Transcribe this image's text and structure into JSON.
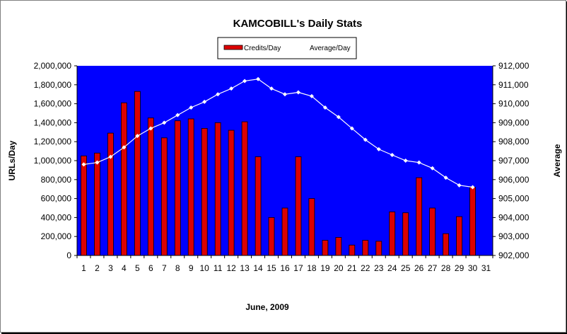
{
  "chart_data": {
    "type": "bar",
    "title": "KAMCOBILL's Daily Stats",
    "xlabel": "June, 2009",
    "ylabel": "URLs/Day",
    "y2label": "Average",
    "categories": [
      "1",
      "2",
      "3",
      "4",
      "5",
      "6",
      "7",
      "8",
      "9",
      "10",
      "11",
      "12",
      "13",
      "14",
      "15",
      "16",
      "17",
      "18",
      "19",
      "20",
      "21",
      "22",
      "23",
      "24",
      "25",
      "26",
      "27",
      "28",
      "29",
      "30",
      "31"
    ],
    "ylim": [
      0,
      2000000
    ],
    "y2lim": [
      902000,
      912000
    ],
    "yticks": [
      "0",
      "200,000",
      "400,000",
      "600,000",
      "800,000",
      "1,000,000",
      "1,200,000",
      "1,400,000",
      "1,600,000",
      "1,800,000",
      "2,000,000"
    ],
    "y2ticks": [
      "902,000",
      "903,000",
      "904,000",
      "905,000",
      "906,000",
      "907,000",
      "908,000",
      "909,000",
      "910,000",
      "911,000",
      "912,000"
    ],
    "legend_position": "top",
    "grid": false,
    "plot_background": "#0000ff",
    "series": [
      {
        "name": "Credits/Day",
        "type": "bar",
        "axis": "left",
        "color": "#dd0000",
        "values": [
          1050000,
          1080000,
          1290000,
          1610000,
          1730000,
          1450000,
          1240000,
          1420000,
          1440000,
          1340000,
          1400000,
          1320000,
          1410000,
          1040000,
          400000,
          500000,
          1040000,
          600000,
          160000,
          190000,
          110000,
          160000,
          150000,
          460000,
          450000,
          820000,
          500000,
          230000,
          410000,
          720000,
          null
        ]
      },
      {
        "name": "Average/Day",
        "type": "line",
        "axis": "right",
        "color": "#ffffff",
        "values": [
          906800,
          906900,
          907200,
          907700,
          908300,
          908700,
          909000,
          909400,
          909800,
          910100,
          910500,
          910800,
          911200,
          911300,
          910800,
          910500,
          910600,
          910400,
          909800,
          909300,
          908700,
          908100,
          907600,
          907300,
          907000,
          906900,
          906600,
          906100,
          905700,
          905600,
          null
        ]
      }
    ]
  }
}
